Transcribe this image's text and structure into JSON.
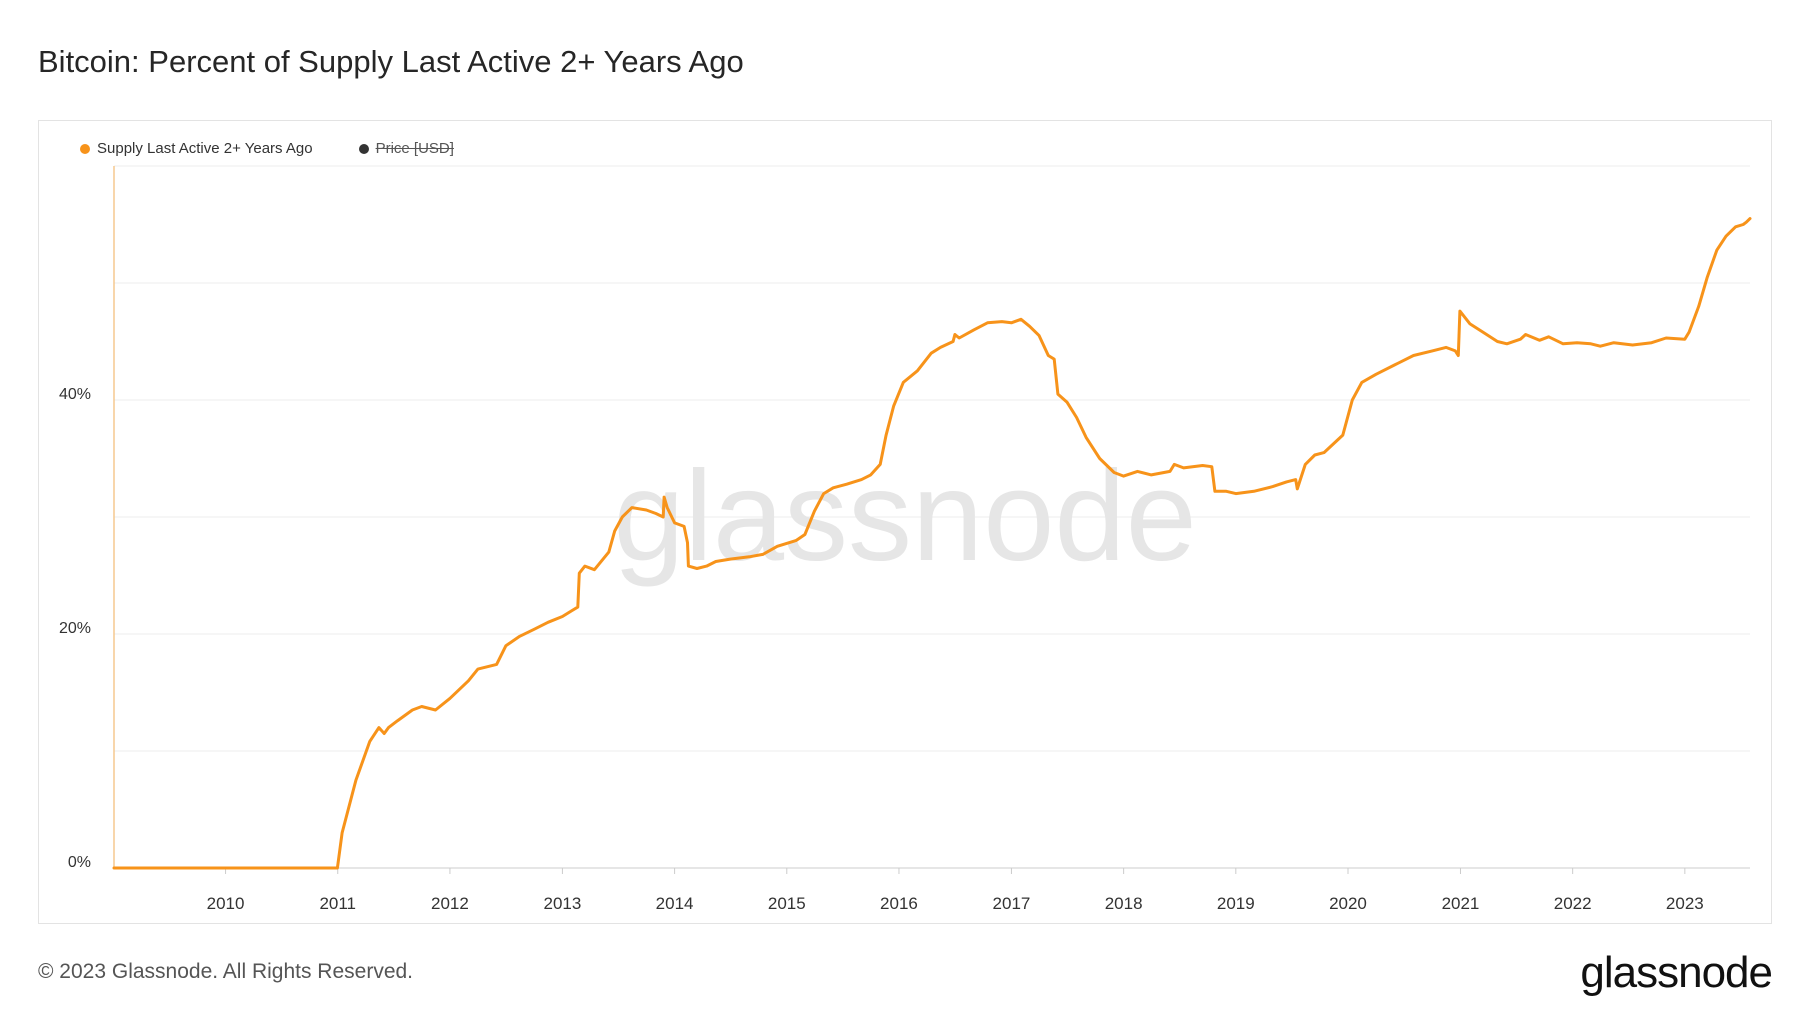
{
  "title": "Bitcoin: Percent of Supply Last Active 2+ Years Ago",
  "footer": "© 2023 Glassnode. All Rights Reserved.",
  "logo": "glassnode",
  "watermark": "glassnode",
  "colors": {
    "series": "#f7931a",
    "price": "#333333",
    "grid": "#ececec",
    "axis_text": "#333333",
    "watermark": "#e6e6e6"
  },
  "legend": [
    {
      "label": "Supply Last Active 2+ Years Ago",
      "color": "#f7931a",
      "enabled": true
    },
    {
      "label": "Price [USD]",
      "color": "#333333",
      "enabled": false
    }
  ],
  "chart_data": {
    "type": "line",
    "title": "Bitcoin: Percent of Supply Last Active 2+ Years Ago",
    "xlabel": "",
    "ylabel": "",
    "x_ticks": [
      "2010",
      "2011",
      "2012",
      "2013",
      "2014",
      "2015",
      "2016",
      "2017",
      "2018",
      "2019",
      "2020",
      "2021",
      "2022",
      "2023"
    ],
    "y_ticks": [
      {
        "value": 0,
        "label": "0%"
      },
      {
        "value": 20,
        "label": "20%"
      },
      {
        "value": 40,
        "label": "40%"
      }
    ],
    "ylim": [
      0,
      60
    ],
    "xlim": [
      "2009-01-03",
      "2023-08-01"
    ],
    "grid": true,
    "legend_position": "top-left",
    "series": [
      {
        "name": "Supply Last Active 2+ Years Ago",
        "color": "#f7931a",
        "points": [
          [
            "2009-01-03",
            0.0
          ],
          [
            "2010-12-31",
            0.0
          ],
          [
            "2011-01-15",
            3.0
          ],
          [
            "2011-03-01",
            7.5
          ],
          [
            "2011-04-15",
            10.8
          ],
          [
            "2011-05-15",
            12.0
          ],
          [
            "2011-06-01",
            11.5
          ],
          [
            "2011-06-15",
            12.0
          ],
          [
            "2011-07-15",
            12.6
          ],
          [
            "2011-09-01",
            13.5
          ],
          [
            "2011-10-01",
            13.8
          ],
          [
            "2011-11-15",
            13.5
          ],
          [
            "2012-01-01",
            14.5
          ],
          [
            "2012-03-01",
            16.0
          ],
          [
            "2012-04-01",
            17.0
          ],
          [
            "2012-06-01",
            17.4
          ],
          [
            "2012-07-01",
            19.0
          ],
          [
            "2012-08-15",
            19.8
          ],
          [
            "2012-10-01",
            20.4
          ],
          [
            "2012-11-15",
            21.0
          ],
          [
            "2013-01-01",
            21.5
          ],
          [
            "2013-02-01",
            22.0
          ],
          [
            "2013-02-20",
            22.3
          ],
          [
            "2013-02-25",
            25.2
          ],
          [
            "2013-03-15",
            25.8
          ],
          [
            "2013-04-15",
            25.5
          ],
          [
            "2013-06-01",
            27.0
          ],
          [
            "2013-06-20",
            28.8
          ],
          [
            "2013-07-15",
            30.0
          ],
          [
            "2013-08-15",
            30.8
          ],
          [
            "2013-10-01",
            30.6
          ],
          [
            "2013-11-01",
            30.3
          ],
          [
            "2013-11-25",
            30.0
          ],
          [
            "2013-11-28",
            31.7
          ],
          [
            "2013-12-08",
            30.8
          ],
          [
            "2014-01-01",
            29.5
          ],
          [
            "2014-02-01",
            29.2
          ],
          [
            "2014-02-12",
            27.8
          ],
          [
            "2014-02-15",
            25.8
          ],
          [
            "2014-03-15",
            25.6
          ],
          [
            "2014-04-15",
            25.8
          ],
          [
            "2014-05-15",
            26.2
          ],
          [
            "2014-07-01",
            26.4
          ],
          [
            "2014-09-01",
            26.6
          ],
          [
            "2014-10-15",
            26.8
          ],
          [
            "2014-12-01",
            27.5
          ],
          [
            "2015-02-01",
            28.0
          ],
          [
            "2015-03-01",
            28.5
          ],
          [
            "2015-04-01",
            30.5
          ],
          [
            "2015-05-01",
            32.0
          ],
          [
            "2015-06-01",
            32.5
          ],
          [
            "2015-07-15",
            32.8
          ],
          [
            "2015-09-01",
            33.2
          ],
          [
            "2015-10-01",
            33.6
          ],
          [
            "2015-11-01",
            34.5
          ],
          [
            "2015-11-20",
            37.0
          ],
          [
            "2015-12-15",
            39.5
          ],
          [
            "2016-01-15",
            41.5
          ],
          [
            "2016-03-01",
            42.5
          ],
          [
            "2016-04-15",
            44.0
          ],
          [
            "2016-05-15",
            44.5
          ],
          [
            "2016-06-25",
            45.0
          ],
          [
            "2016-07-01",
            45.6
          ],
          [
            "2016-07-15",
            45.3
          ],
          [
            "2016-09-01",
            46.0
          ],
          [
            "2016-10-15",
            46.6
          ],
          [
            "2016-12-01",
            46.7
          ],
          [
            "2017-01-01",
            46.6
          ],
          [
            "2017-02-01",
            46.9
          ],
          [
            "2017-03-01",
            46.3
          ],
          [
            "2017-04-01",
            45.5
          ],
          [
            "2017-05-01",
            43.8
          ],
          [
            "2017-05-20",
            43.5
          ],
          [
            "2017-06-01",
            40.5
          ],
          [
            "2017-07-01",
            39.8
          ],
          [
            "2017-08-01",
            38.5
          ],
          [
            "2017-09-01",
            36.8
          ],
          [
            "2017-10-15",
            35.0
          ],
          [
            "2017-12-01",
            33.8
          ],
          [
            "2018-01-01",
            33.5
          ],
          [
            "2018-02-15",
            33.9
          ],
          [
            "2018-04-01",
            33.6
          ],
          [
            "2018-06-01",
            33.9
          ],
          [
            "2018-06-15",
            34.5
          ],
          [
            "2018-07-15",
            34.2
          ],
          [
            "2018-09-15",
            34.4
          ],
          [
            "2018-10-15",
            34.3
          ],
          [
            "2018-10-25",
            32.2
          ],
          [
            "2018-12-01",
            32.2
          ],
          [
            "2019-01-01",
            32.0
          ],
          [
            "2019-03-01",
            32.2
          ],
          [
            "2019-05-01",
            32.6
          ],
          [
            "2019-06-15",
            33.0
          ],
          [
            "2019-07-15",
            33.2
          ],
          [
            "2019-07-20",
            32.4
          ],
          [
            "2019-08-15",
            34.5
          ],
          [
            "2019-09-15",
            35.3
          ],
          [
            "2019-10-15",
            35.5
          ],
          [
            "2019-12-15",
            37.0
          ],
          [
            "2020-01-15",
            40.0
          ],
          [
            "2020-02-15",
            41.5
          ],
          [
            "2020-04-01",
            42.2
          ],
          [
            "2020-06-01",
            43.0
          ],
          [
            "2020-08-01",
            43.8
          ],
          [
            "2020-10-01",
            44.2
          ],
          [
            "2020-11-15",
            44.5
          ],
          [
            "2020-12-15",
            44.2
          ],
          [
            "2020-12-25",
            43.8
          ],
          [
            "2020-12-30",
            47.6
          ],
          [
            "2021-02-01",
            46.5
          ],
          [
            "2021-03-15",
            45.8
          ],
          [
            "2021-05-01",
            45.0
          ],
          [
            "2021-06-01",
            44.8
          ],
          [
            "2021-07-15",
            45.2
          ],
          [
            "2021-08-01",
            45.6
          ],
          [
            "2021-09-15",
            45.1
          ],
          [
            "2021-10-15",
            45.4
          ],
          [
            "2021-12-01",
            44.8
          ],
          [
            "2022-01-15",
            44.9
          ],
          [
            "2022-03-01",
            44.8
          ],
          [
            "2022-04-01",
            44.6
          ],
          [
            "2022-05-15",
            44.9
          ],
          [
            "2022-07-15",
            44.7
          ],
          [
            "2022-09-15",
            44.9
          ],
          [
            "2022-11-01",
            45.3
          ],
          [
            "2023-01-01",
            45.2
          ],
          [
            "2023-01-15",
            45.8
          ],
          [
            "2023-02-15",
            48.0
          ],
          [
            "2023-03-15",
            50.5
          ],
          [
            "2023-04-15",
            52.8
          ],
          [
            "2023-05-15",
            54.0
          ],
          [
            "2023-06-15",
            54.8
          ],
          [
            "2023-07-10",
            55.0
          ],
          [
            "2023-07-20",
            55.2
          ],
          [
            "2023-08-01",
            55.5
          ]
        ]
      }
    ]
  }
}
